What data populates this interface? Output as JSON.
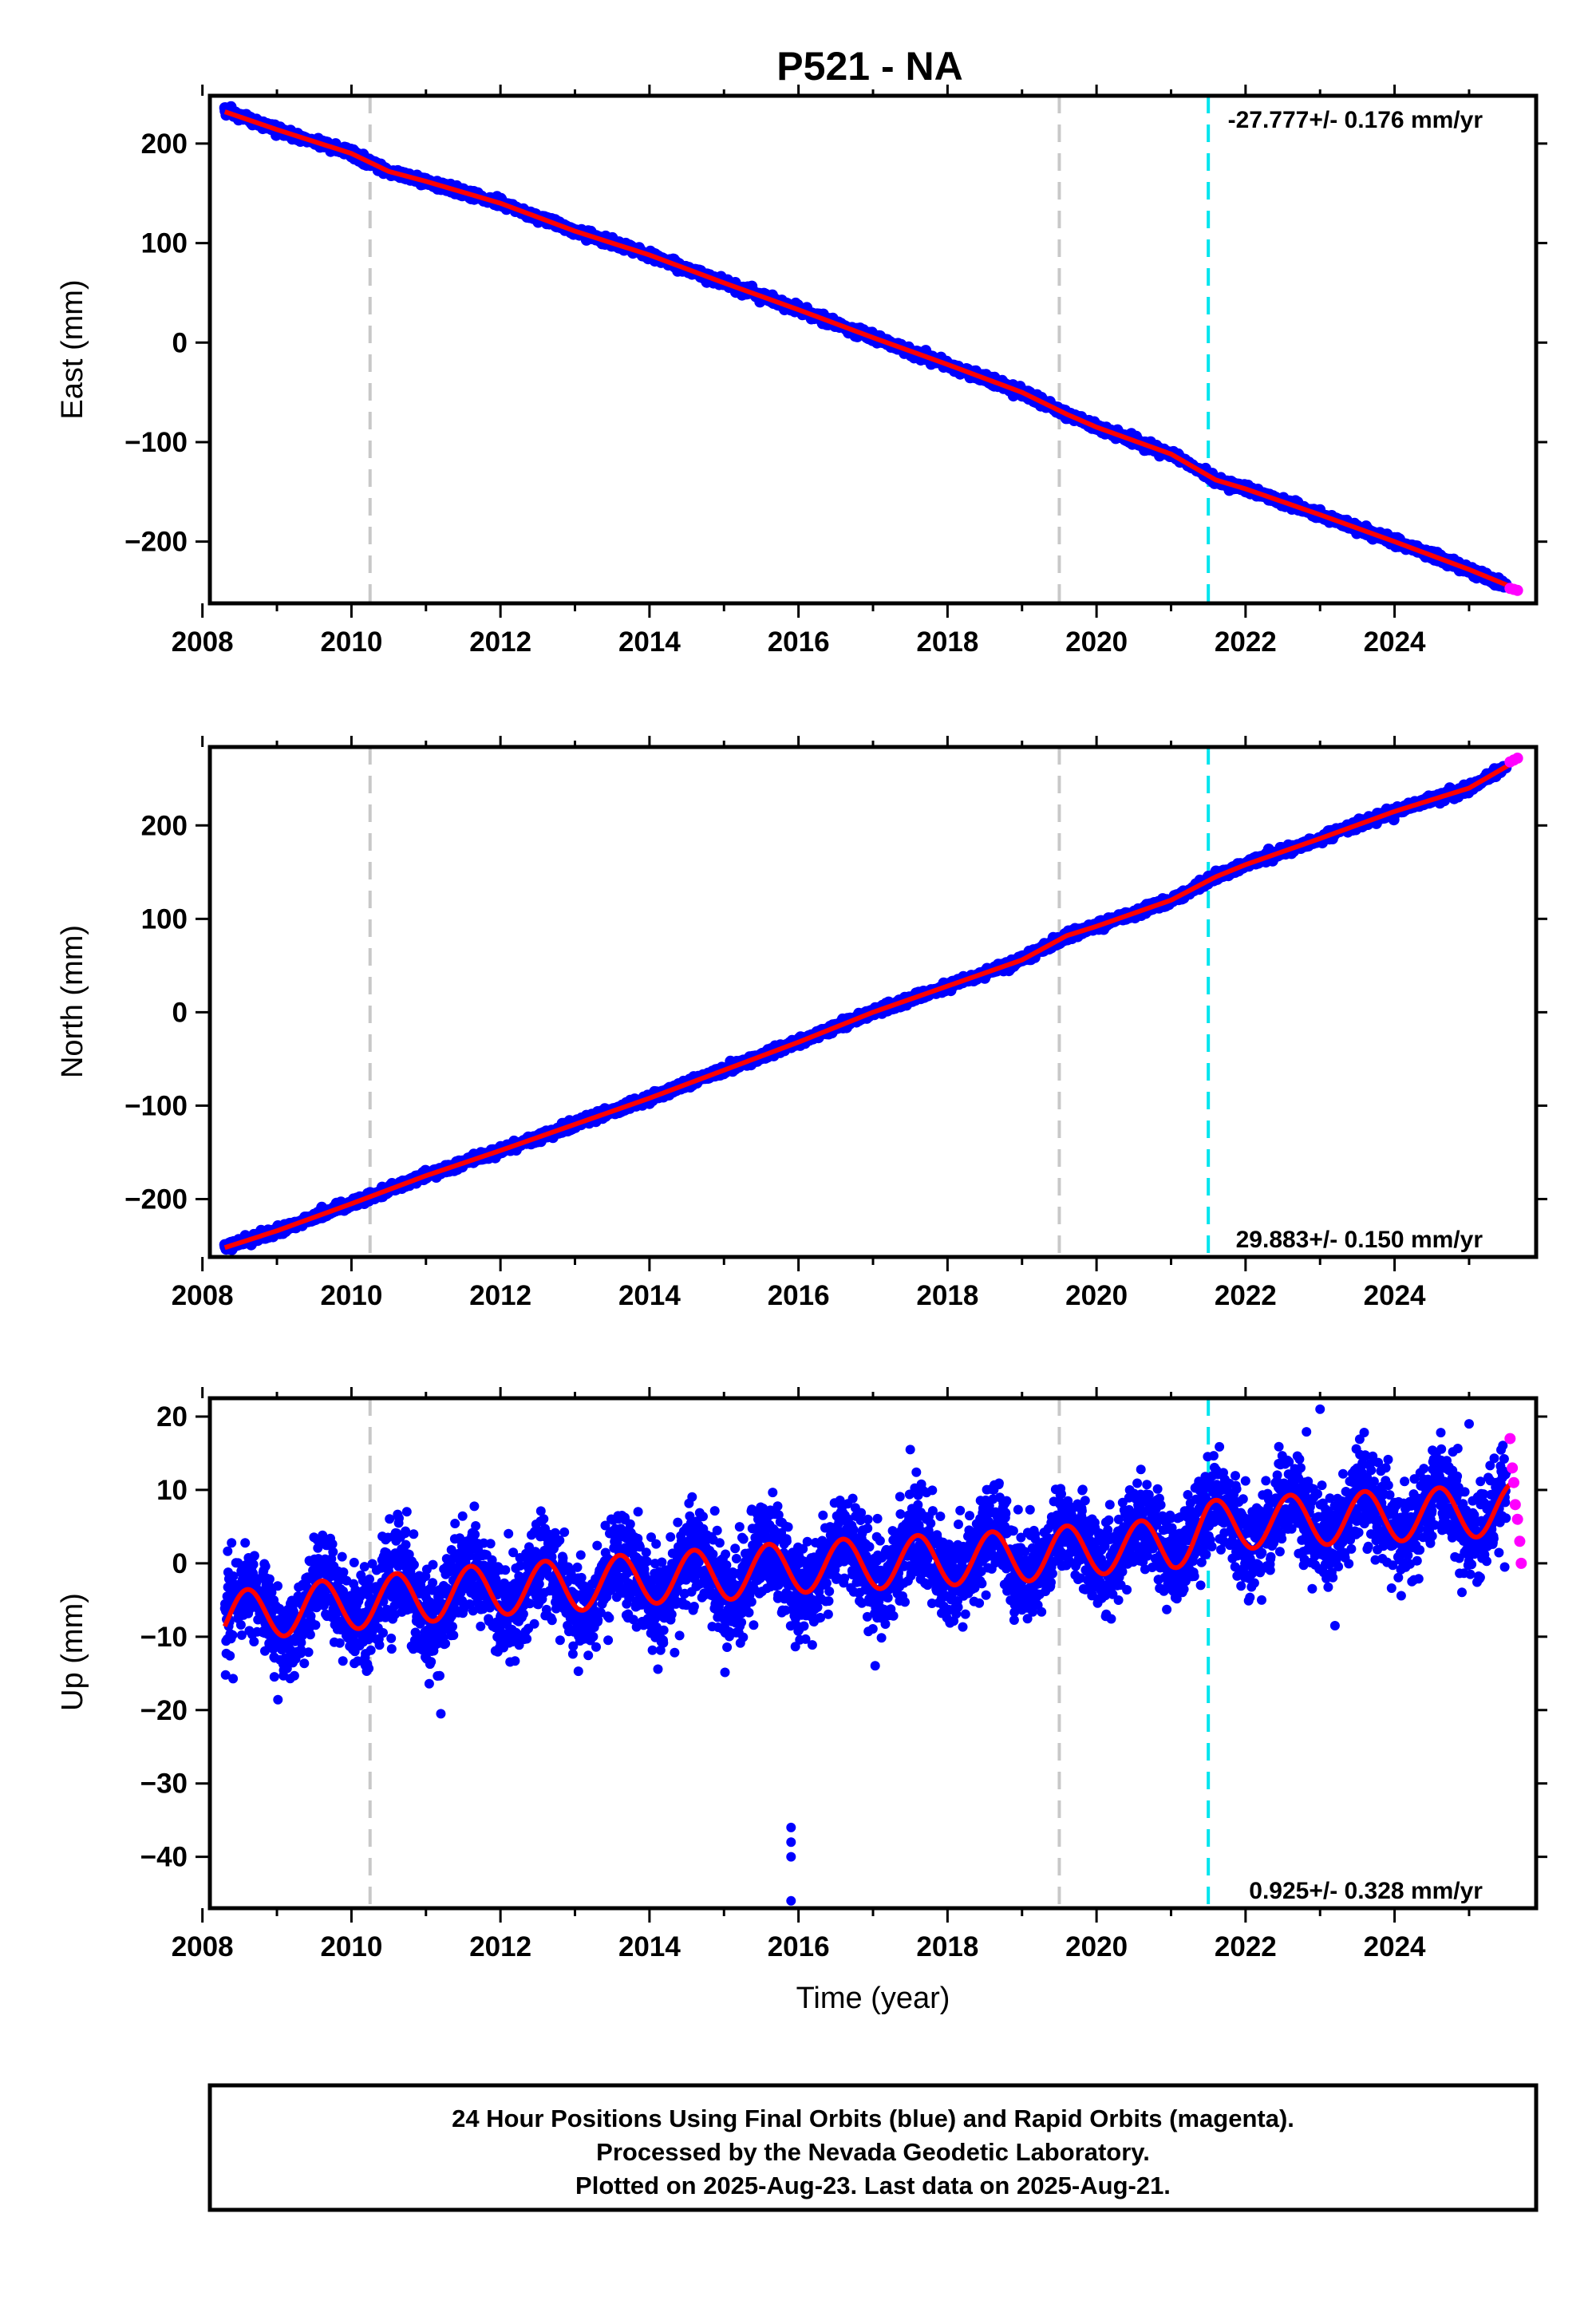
{
  "figure": {
    "title": "P521 - NA",
    "footer_lines": [
      "24 Hour Positions Using Final Orbits (blue) and Rapid Orbits (magenta).",
      "Processed by the Nevada Geodetic Laboratory.",
      "Plotted on 2025-Aug-23. Last data on 2025-Aug-21."
    ],
    "colors": {
      "final_orbits": "#0000ff",
      "rapid_orbits": "#ff00ff",
      "model_fit": "#ff0000",
      "equipment_change": "#c8c8c8",
      "earthquake_offset": "#00e5ee"
    }
  },
  "chart_data": [
    {
      "type": "scatter",
      "ylabel": "East (mm)",
      "xlabel": "",
      "xlim": [
        2008.1,
        2025.9
      ],
      "ylim": [
        -262,
        248
      ],
      "x_ticks": [
        2008,
        2010,
        2012,
        2014,
        2016,
        2018,
        2020,
        2022,
        2024
      ],
      "y_ticks": [
        200,
        100,
        0,
        -100,
        -200
      ],
      "y_tick_labels": [
        "200",
        "100",
        "0",
        "−100",
        "−200"
      ],
      "rate_text": "-27.777+/- 0.176 mm/yr",
      "rate_position": "top-right",
      "reference_lines": [
        {
          "x": 2010.25,
          "kind": "equipment_change"
        },
        {
          "x": 2019.5,
          "kind": "equipment_change"
        },
        {
          "x": 2021.5,
          "kind": "earthquake_offset"
        }
      ],
      "series": [
        {
          "role": "final_orbits",
          "x": [
            2008.3,
            2009.0,
            2010.0,
            2010.5,
            2011.0,
            2012.0,
            2013.0,
            2014.0,
            2015.0,
            2016.0,
            2017.0,
            2018.0,
            2019.0,
            2019.6,
            2020.0,
            2021.0,
            2021.6,
            2022.0,
            2023.0,
            2024.0,
            2025.0,
            2025.5
          ],
          "y": [
            233,
            214,
            190,
            172,
            162,
            140,
            112,
            88,
            60,
            33,
            5,
            -22,
            -50,
            -72,
            -85,
            -112,
            -138,
            -147,
            -173,
            -200,
            -228,
            -245
          ]
        },
        {
          "role": "rapid_orbits",
          "x": [
            2025.55,
            2025.6,
            2025.65
          ],
          "y": [
            -247,
            -248,
            -249
          ]
        },
        {
          "role": "model_fit",
          "x": [
            2008.3,
            2009.0,
            2010.0,
            2010.5,
            2011.0,
            2012.0,
            2013.0,
            2014.0,
            2015.0,
            2016.0,
            2017.0,
            2018.0,
            2019.0,
            2019.6,
            2020.0,
            2021.0,
            2021.6,
            2022.0,
            2023.0,
            2024.0,
            2025.0,
            2025.65
          ],
          "y": [
            232,
            214,
            190,
            172,
            162,
            140,
            112,
            88,
            60,
            33,
            5,
            -22,
            -50,
            -72,
            -85,
            -112,
            -138,
            -147,
            -173,
            -200,
            -228,
            -248
          ]
        }
      ]
    },
    {
      "type": "scatter",
      "ylabel": "North (mm)",
      "xlabel": "",
      "xlim": [
        2008.1,
        2025.9
      ],
      "ylim": [
        -262,
        284
      ],
      "x_ticks": [
        2008,
        2010,
        2012,
        2014,
        2016,
        2018,
        2020,
        2022,
        2024
      ],
      "y_ticks": [
        200,
        100,
        0,
        -100,
        -200
      ],
      "y_tick_labels": [
        "200",
        "100",
        "0",
        "−100",
        "−200"
      ],
      "rate_text": "29.883+/- 0.150 mm/yr",
      "rate_position": "bottom-right",
      "reference_lines": [
        {
          "x": 2010.25,
          "kind": "equipment_change"
        },
        {
          "x": 2019.5,
          "kind": "equipment_change"
        },
        {
          "x": 2021.5,
          "kind": "earthquake_offset"
        }
      ],
      "series": [
        {
          "role": "final_orbits",
          "x": [
            2008.3,
            2009.0,
            2010.0,
            2011.0,
            2012.0,
            2013.0,
            2014.0,
            2015.0,
            2016.0,
            2017.0,
            2018.0,
            2019.0,
            2019.6,
            2020.0,
            2021.0,
            2021.6,
            2022.0,
            2023.0,
            2024.0,
            2025.0,
            2025.5
          ],
          "y": [
            -252,
            -234,
            -205,
            -175,
            -148,
            -120,
            -92,
            -62,
            -32,
            0,
            28,
            56,
            82,
            92,
            120,
            145,
            158,
            186,
            215,
            240,
            262
          ]
        },
        {
          "role": "rapid_orbits",
          "x": [
            2025.55,
            2025.6,
            2025.65
          ],
          "y": [
            268,
            270,
            272
          ]
        },
        {
          "role": "model_fit",
          "x": [
            2008.3,
            2009.0,
            2010.0,
            2011.0,
            2012.0,
            2013.0,
            2014.0,
            2015.0,
            2016.0,
            2017.0,
            2018.0,
            2019.0,
            2019.6,
            2020.0,
            2021.0,
            2021.6,
            2022.0,
            2023.0,
            2024.0,
            2025.0,
            2025.65
          ],
          "y": [
            -252,
            -234,
            -205,
            -175,
            -148,
            -120,
            -92,
            -62,
            -32,
            0,
            28,
            56,
            82,
            92,
            120,
            145,
            158,
            186,
            215,
            240,
            270
          ]
        }
      ]
    },
    {
      "type": "scatter",
      "ylabel": "Up (mm)",
      "xlabel": "Time (year)",
      "xlim": [
        2008.1,
        2025.9
      ],
      "ylim": [
        -47,
        22.5
      ],
      "x_ticks": [
        2008,
        2010,
        2012,
        2014,
        2016,
        2018,
        2020,
        2022,
        2024
      ],
      "y_ticks": [
        20,
        10,
        0,
        -10,
        -20,
        -30,
        -40
      ],
      "y_tick_labels": [
        "20",
        "10",
        "0",
        "−10",
        "−20",
        "−30",
        "−40"
      ],
      "rate_text": "0.925+/- 0.328 mm/yr",
      "rate_position": "bottom-right",
      "seasonal_amplitude_mm": 3.5,
      "reference_lines": [
        {
          "x": 2010.25,
          "kind": "equipment_change"
        },
        {
          "x": 2019.5,
          "kind": "equipment_change"
        },
        {
          "x": 2021.5,
          "kind": "earthquake_offset"
        }
      ],
      "outliers": [
        {
          "x": 2015.9,
          "y": -36
        },
        {
          "x": 2015.9,
          "y": -38
        },
        {
          "x": 2015.9,
          "y": -40
        },
        {
          "x": 2015.9,
          "y": -46
        },
        {
          "x": 2023.0,
          "y": 21
        },
        {
          "x": 2023.2,
          "y": -8.5
        },
        {
          "x": 2025.0,
          "y": 19
        },
        {
          "x": 2011.2,
          "y": -20.5
        },
        {
          "x": 2017.5,
          "y": 15.5
        }
      ],
      "series": [
        {
          "role": "final_orbits",
          "x": [
            2008.3,
            2009.0,
            2010.0,
            2011.0,
            2012.0,
            2013.0,
            2014.0,
            2015.0,
            2016.0,
            2017.0,
            2018.0,
            2019.0,
            2020.0,
            2021.0,
            2021.5,
            2022.0,
            2023.0,
            2024.0,
            2025.0,
            2025.5
          ],
          "y": [
            -7.5,
            -6.5,
            -5.5,
            -4.5,
            -3.5,
            -3,
            -2,
            -1.5,
            -0.5,
            0,
            0.5,
            1,
            2,
            2.5,
            5,
            5.5,
            6,
            6.5,
            7,
            7.5
          ]
        },
        {
          "role": "rapid_orbits",
          "x": [
            2025.55,
            2025.58,
            2025.6,
            2025.62,
            2025.65,
            2025.68,
            2025.7
          ],
          "y": [
            17,
            13,
            11,
            8,
            6,
            3,
            0
          ]
        },
        {
          "role": "model_fit",
          "x": [
            2008.3,
            2009.0,
            2010.0,
            2011.0,
            2012.0,
            2013.0,
            2014.0,
            2015.0,
            2016.0,
            2017.0,
            2018.0,
            2019.0,
            2020.0,
            2021.0,
            2021.5,
            2022.0,
            2023.0,
            2024.0,
            2025.0,
            2025.65
          ],
          "y": [
            -7.5,
            -6.5,
            -5.5,
            -4.5,
            -3.5,
            -3,
            -2,
            -1.5,
            -0.5,
            0,
            0.5,
            1,
            2,
            2.5,
            5,
            5.5,
            6,
            6.5,
            7,
            7.5
          ]
        }
      ]
    }
  ]
}
